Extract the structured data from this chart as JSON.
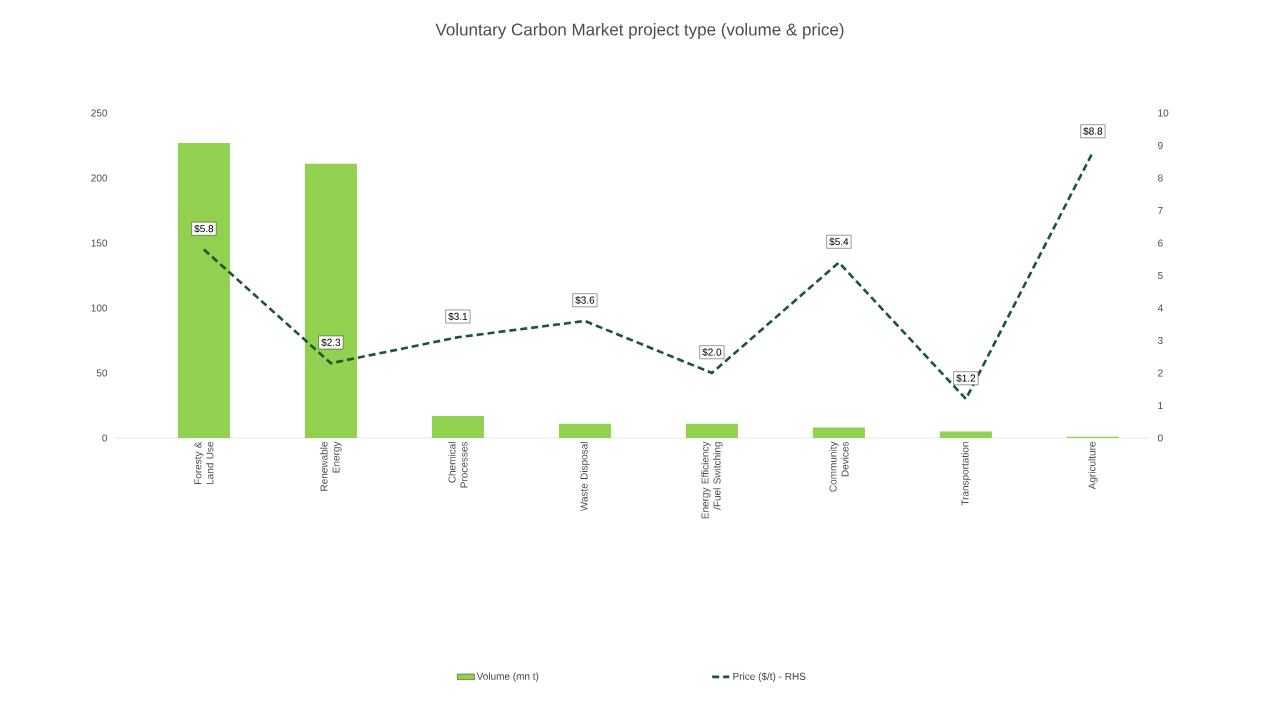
{
  "chart_data": {
    "type": "bar",
    "title": "Voluntary Carbon Market project type (volume & price)",
    "categories": [
      "Foresty & Land Use",
      "Renewable Energy",
      "Chemical Processes",
      "Waste Disposal",
      "Energy Efficiency /Fuel Switching",
      "Community Devices",
      "Transportation",
      "Agriculture"
    ],
    "series": [
      {
        "name": "Volume (mn t)",
        "color": "#92d050",
        "values": [
          227,
          211,
          17,
          11,
          11,
          8,
          5,
          1
        ]
      },
      {
        "name": "Price ($/t) - RHS",
        "type": "line",
        "axis": "y2",
        "color": "#1e5631",
        "line_style": "dashed",
        "values": [
          5.8,
          2.3,
          3.1,
          3.6,
          2.0,
          5.4,
          1.2,
          8.8
        ],
        "value_labels": [
          "$5.8",
          "$2.3",
          "$3.1",
          "$3.6",
          "$2.0",
          "$5.4",
          "$1.2",
          "$8.8"
        ]
      }
    ],
    "ylim": [
      0,
      250
    ],
    "yticks": [
      0,
      50,
      100,
      150,
      200,
      250
    ],
    "y2lim": [
      0,
      10
    ],
    "y2ticks": [
      0,
      1,
      2,
      3,
      4,
      5,
      6,
      7,
      8,
      9,
      10
    ],
    "legend": "bottom",
    "grid": false,
    "marker": "none"
  }
}
